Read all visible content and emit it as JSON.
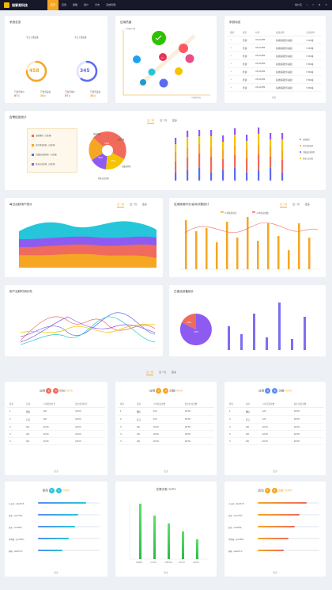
{
  "app": {
    "title": "指掌易科技",
    "nav": [
      "首页",
      "应用",
      "策略",
      "用户",
      "日志",
      "系统管理"
    ],
    "nav_active": 0,
    "right": [
      "用户名",
      "!",
      "?",
      "⚙",
      "✎"
    ]
  },
  "overview": {
    "title": "系统总览",
    "online": {
      "label": "今日上线设备",
      "value": "458",
      "percent": 0.75,
      "color": "#f5a623"
    },
    "offline": {
      "label": "今日上线设备",
      "value": "345",
      "percent": 0.6,
      "color": "#5b6cf0"
    },
    "stats": [
      {
        "label": "已激活用户",
        "value": "67",
        "unit": "台"
      },
      {
        "label": "已激活设备",
        "value": "38",
        "unit": "台"
      },
      {
        "label": "已激活用户",
        "value": "67",
        "unit": "台"
      },
      {
        "label": "已激活设备",
        "value": "38",
        "unit": "台"
      }
    ]
  },
  "heat": {
    "title": "应用热度",
    "y_label": "人均使用人数",
    "x_label": "人均使用时长"
  },
  "sysdyn": {
    "title": "系统动态",
    "headers": [
      "级别",
      "类型",
      "时间",
      "描述说明",
      "应用名称"
    ],
    "rows": [
      [
        "⚠",
        "普通",
        "03/12/PM",
        "指纹解锁密码失败",
        "F-MK版"
      ],
      [
        "⚠",
        "普通",
        "03/12/PM",
        "指纹解锁密码失败",
        "F-MK版"
      ],
      [
        "⚠",
        "普通",
        "03/12/PM",
        "指纹解锁密码失败",
        "F-MK版"
      ],
      [
        "⚠",
        "普通",
        "03/12/PM",
        "指纹解锁密码失败",
        "F-MK版"
      ],
      [
        "⚠",
        "普通",
        "03/12/PM",
        "指纹解锁密码失败",
        "F-MK版"
      ],
      [
        "⚠",
        "普通",
        "03/12/PM",
        "指纹解锁密码失败",
        "F-MK版"
      ],
      [
        "⚠",
        "普通",
        "03/12/PM",
        "指纹解锁密码失败",
        "F-MK版"
      ]
    ],
    "more": "更多"
  },
  "alarm": {
    "title": "告警信息统计",
    "tabs": [
      "近一周",
      "近一月",
      "更多"
    ],
    "legend": [
      "违规越狱（已处理）",
      "多次登录失败（已处理）",
      "已触发违规风险（已处理）",
      "登录认证失败（已处理）"
    ],
    "pie_labels": [
      "终端越狱",
      "违规应用",
      "已触发风险",
      "登录认证失败"
    ]
  },
  "daily": {
    "title": "每日活跃用户统计",
    "tabs": [
      "近一周",
      "近一月",
      "更多"
    ]
  },
  "appusage": {
    "title": "应用使用时长/启动次数统计",
    "tabs": [
      "近一周",
      "近一月",
      "更多"
    ],
    "legend": [
      "人均使用时长",
      "人均启动次数"
    ]
  },
  "timedist": {
    "title": "用户活跃时间分布"
  },
  "devices": {
    "title": "已激活设备统计"
  },
  "mid_tabs": [
    "近一周",
    "近一月",
    "更多"
  ],
  "top_tables": [
    {
      "prefix": "应用",
      "c1": "使",
      "c2": "用",
      "c1color": "#f06b5b",
      "c2color": "#f06b5b",
      "suffix": "时长",
      "suffixword": "TOP5",
      "headers": [
        "排名",
        "应用",
        "人均使用时长",
        "最大使用时长"
      ],
      "rows": [
        [
          "1",
          "微信",
          "12h",
          "18.5h"
        ],
        [
          "2",
          "钉钉",
          "12h",
          "18.5h"
        ],
        [
          "3",
          "QQ",
          "10.5h",
          "18.5h"
        ],
        [
          "3",
          "QQ",
          "10.5h",
          "18.5h"
        ],
        [
          "3",
          "QQ",
          "10.5h",
          "18.5h"
        ]
      ]
    },
    {
      "prefix": "应用",
      "c1": "启",
      "c2": "动",
      "c1color": "#f5a623",
      "c2color": "#f5a623",
      "suffix": "次数",
      "suffixword": "TOP5",
      "headers": [
        "排名",
        "应用",
        "人均启动次数",
        "最大启动次数"
      ],
      "rows": [
        [
          "1",
          "微信",
          "12h",
          "18.5h"
        ],
        [
          "2",
          "钉钉",
          "12h",
          "18.5h"
        ],
        [
          "3",
          "QQ",
          "10.5h",
          "18.5h"
        ],
        [
          "3",
          "QQ",
          "10.5h",
          "18.5h"
        ],
        [
          "3",
          "QQ",
          "10.5h",
          "18.5h"
        ]
      ]
    },
    {
      "prefix": "应用",
      "c1": "安",
      "c2": "装",
      "c1color": "#5b8cf0",
      "c2color": "#5b8cf0",
      "suffix": "次数",
      "suffixword": "TOP5",
      "headers": [
        "排名",
        "应用",
        "人均安装次数",
        "最大安装次数"
      ],
      "rows": [
        [
          "1",
          "微信",
          "12h",
          "18.5h"
        ],
        [
          "2",
          "钉钉",
          "12h",
          "18.5h"
        ],
        [
          "3",
          "QQ",
          "10.5h",
          "18.5h"
        ],
        [
          "3",
          "QQ",
          "10.5h",
          "18.5h"
        ],
        [
          "3",
          "QQ",
          "10.5h",
          "18.5h"
        ]
      ]
    }
  ],
  "more": "更多",
  "user_top": {
    "prefix": "使用",
    "c1": "时",
    "c2": "长",
    "suffix": "TOP5",
    "users": [
      "王五回（abel513）",
      "张欢（aeecf36）",
      "赵欢（ace669）",
      "李晓强（goo999）",
      "杨扬（abel513）"
    ],
    "values": [
      0.78,
      0.66,
      0.6,
      0.5,
      0.4
    ]
  },
  "alarm_top": {
    "title": "告警次数 TOP5",
    "labels": [
      "违规越狱",
      "多次登录",
      "已触发违规",
      "登录认证",
      "违规应用"
    ],
    "values": [
      70,
      55,
      45,
      35,
      25
    ]
  },
  "login_top": {
    "prefix": "启动",
    "c1": "登",
    "c2": "录",
    "suffix": "次数 TOP5",
    "users": [
      "王五回（abel513）",
      "张欢（aeecf36）",
      "赵欢（ace669）",
      "李晓强（goo999）",
      "杨扬（abel513）"
    ],
    "values": [
      0.8,
      0.68,
      0.6,
      0.5,
      0.42
    ]
  }
}
